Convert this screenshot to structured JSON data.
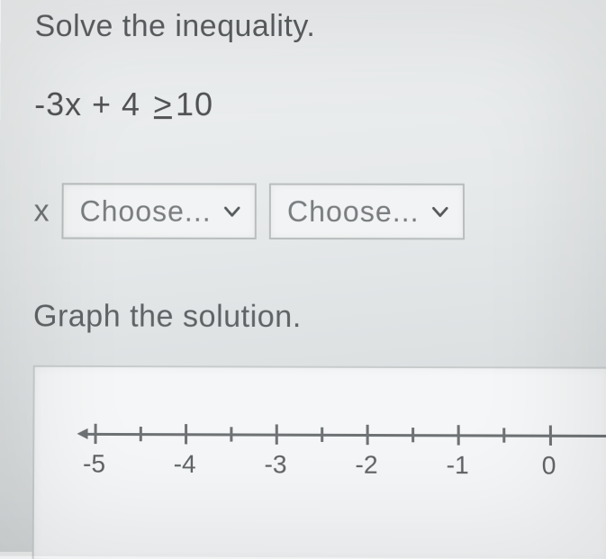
{
  "heading": "Solve the inequality.",
  "inequality": {
    "lhs": "-3x + 4",
    "op_glyph": ">",
    "rhs": "10"
  },
  "answer": {
    "variable": "x",
    "select1": {
      "placeholder": "Choose..."
    },
    "select2": {
      "placeholder": "Choose..."
    }
  },
  "graph_heading": "Graph the solution.",
  "number_line": {
    "ticks": [
      {
        "pos_pct": 2,
        "label": "-5",
        "major": true
      },
      {
        "pos_pct": 11,
        "major": false
      },
      {
        "pos_pct": 20,
        "label": "-4",
        "major": true
      },
      {
        "pos_pct": 29,
        "major": false
      },
      {
        "pos_pct": 38,
        "label": "-3",
        "major": true
      },
      {
        "pos_pct": 47,
        "major": false
      },
      {
        "pos_pct": 56,
        "label": "-2",
        "major": true
      },
      {
        "pos_pct": 65,
        "major": false
      },
      {
        "pos_pct": 74,
        "label": "-1",
        "major": true
      },
      {
        "pos_pct": 83,
        "major": false
      },
      {
        "pos_pct": 92,
        "label": "0",
        "major": true
      }
    ],
    "axis_color": "#6f7274",
    "background": "#f4f6f7"
  },
  "colors": {
    "text": "#4a4d4f",
    "select_border": "#b9bdbe",
    "select_bg": "#f1f3f4",
    "page_bg_top": "#eef0f1",
    "page_bg_bottom": "#cfd3d4"
  }
}
